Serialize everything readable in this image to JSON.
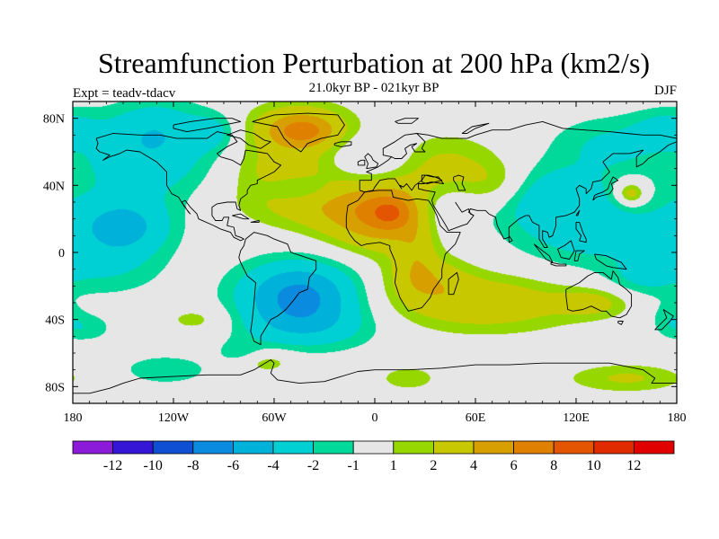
{
  "chart_data": {
    "type": "heatmap",
    "title": "Streamfunction Perturbation at 200 hPa (km2/s)",
    "center_subtitle": "21.0kyr BP - 021kyr BP",
    "left_subtitle": "Expt = teadv-tdacv",
    "right_subtitle": "DJF",
    "x_ticks": [
      {
        "value": -180,
        "label": "180"
      },
      {
        "value": -120,
        "label": "120W"
      },
      {
        "value": -60,
        "label": "60W"
      },
      {
        "value": 0,
        "label": "0"
      },
      {
        "value": 60,
        "label": "60E"
      },
      {
        "value": 120,
        "label": "120E"
      },
      {
        "value": 180,
        "label": "180"
      }
    ],
    "y_ticks": [
      {
        "value": 80,
        "label": "80N"
      },
      {
        "value": 40,
        "label": "40N"
      },
      {
        "value": 0,
        "label": "0"
      },
      {
        "value": -40,
        "label": "40S"
      },
      {
        "value": -80,
        "label": "80S"
      }
    ],
    "xlim": [
      -180,
      180
    ],
    "ylim": [
      -90,
      90
    ],
    "colorbar": {
      "levels": [
        -12,
        -10,
        -8,
        -6,
        -4,
        -2,
        -1,
        1,
        2,
        4,
        6,
        8,
        10,
        12
      ],
      "labels": [
        "-12",
        "-10",
        "-8",
        "-6",
        "-4",
        "-2",
        "-1",
        "1",
        "2",
        "4",
        "6",
        "8",
        "10",
        "12"
      ],
      "colors": [
        "#8c1ad9",
        "#3515d6",
        "#0e4fd3",
        "#0a8be0",
        "#00b1d9",
        "#00cfd3",
        "#00d99a",
        "#e6e6e6",
        "#97d700",
        "#c8c800",
        "#d7a000",
        "#e08000",
        "#e35500",
        "#e02a00",
        "#e00000"
      ]
    },
    "blobs": [
      {
        "lon": -45,
        "lat": 75,
        "v": 4,
        "sx": 22,
        "sy": 10
      },
      {
        "lon": -42,
        "lat": 72,
        "v": 3,
        "sx": 12,
        "sy": 6
      },
      {
        "lon": -55,
        "lat": 50,
        "v": 2.5,
        "sx": 22,
        "sy": 14
      },
      {
        "lon": -30,
        "lat": 30,
        "v": 2.6,
        "sx": 35,
        "sy": 12
      },
      {
        "lon": 5,
        "lat": 20,
        "v": 5,
        "sx": 24,
        "sy": 14
      },
      {
        "lon": 10,
        "lat": 24,
        "v": 3,
        "sx": 9,
        "sy": 7
      },
      {
        "lon": 40,
        "lat": 50,
        "v": 2.6,
        "sx": 25,
        "sy": 14
      },
      {
        "lon": 75,
        "lat": 40,
        "v": 2,
        "sx": 15,
        "sy": 10
      },
      {
        "lon": 25,
        "lat": 0,
        "v": 1.8,
        "sx": 8,
        "sy": 14
      },
      {
        "lon": 30,
        "lat": -15,
        "v": 2.5,
        "sx": 18,
        "sy": 10
      },
      {
        "lon": 65,
        "lat": -30,
        "v": 3.5,
        "sx": 40,
        "sy": 12
      },
      {
        "lon": 130,
        "lat": -30,
        "v": 2.3,
        "sx": 15,
        "sy": 6
      },
      {
        "lon": 152,
        "lat": 35,
        "v": 2.5,
        "sx": 10,
        "sy": 8
      },
      {
        "lon": 153,
        "lat": 35,
        "v": 2.3,
        "sx": 5,
        "sy": 4
      },
      {
        "lon": 150,
        "lat": -75,
        "v": 2.2,
        "sx": 25,
        "sy": 6
      },
      {
        "lon": 20,
        "lat": -75,
        "v": 1.8,
        "sx": 12,
        "sy": 5
      },
      {
        "lon": -65,
        "lat": -65,
        "v": 1.8,
        "sx": 12,
        "sy": 5
      },
      {
        "lon": -105,
        "lat": -40,
        "v": 1.6,
        "sx": 15,
        "sy": 6
      },
      {
        "lon": -45,
        "lat": 38,
        "v": -2.4,
        "sx": 15,
        "sy": 6
      },
      {
        "lon": -150,
        "lat": 15,
        "v": -4.5,
        "sx": 20,
        "sy": 12
      },
      {
        "lon": -45,
        "lat": -25,
        "v": -6.5,
        "sx": 25,
        "sy": 14
      },
      {
        "lon": -135,
        "lat": 55,
        "v": -3,
        "sx": 30,
        "sy": 18
      },
      {
        "lon": -130,
        "lat": 75,
        "v": -2.2,
        "sx": 20,
        "sy": 12
      },
      {
        "lon": -160,
        "lat": -10,
        "v": -1.8,
        "sx": 25,
        "sy": 12
      },
      {
        "lon": 0,
        "lat": 55,
        "v": -1.8,
        "sx": 18,
        "sy": 10
      },
      {
        "lon": 40,
        "lat": 25,
        "v": -2.2,
        "sx": 15,
        "sy": 12
      },
      {
        "lon": 95,
        "lat": 35,
        "v": -2,
        "sx": 20,
        "sy": 12
      },
      {
        "lon": 130,
        "lat": 20,
        "v": -3.5,
        "sx": 35,
        "sy": 20
      },
      {
        "lon": 140,
        "lat": 65,
        "v": -2,
        "sx": 25,
        "sy": 12
      },
      {
        "lon": 175,
        "lat": 75,
        "v": -2,
        "sx": 15,
        "sy": 8
      },
      {
        "lon": 160,
        "lat": -15,
        "v": -1.8,
        "sx": 15,
        "sy": 8
      },
      {
        "lon": -40,
        "lat": -45,
        "v": -2.5,
        "sx": 30,
        "sy": 10
      },
      {
        "lon": -125,
        "lat": -70,
        "v": -2,
        "sx": 18,
        "sy": 6
      },
      {
        "lon": -80,
        "lat": -60,
        "v": -1.5,
        "sx": 10,
        "sy": 5
      },
      {
        "lon": 175,
        "lat": -40,
        "v": -1.6,
        "sx": 8,
        "sy": 8
      },
      {
        "lon": -95,
        "lat": 72,
        "v": -2,
        "sx": 10,
        "sy": 8
      },
      {
        "lon": -170,
        "lat": -45,
        "v": -1.6,
        "sx": 10,
        "sy": 6
      }
    ]
  },
  "colors": {
    "frame": "#000000",
    "coast": "#000000",
    "background": "#ffffff"
  }
}
